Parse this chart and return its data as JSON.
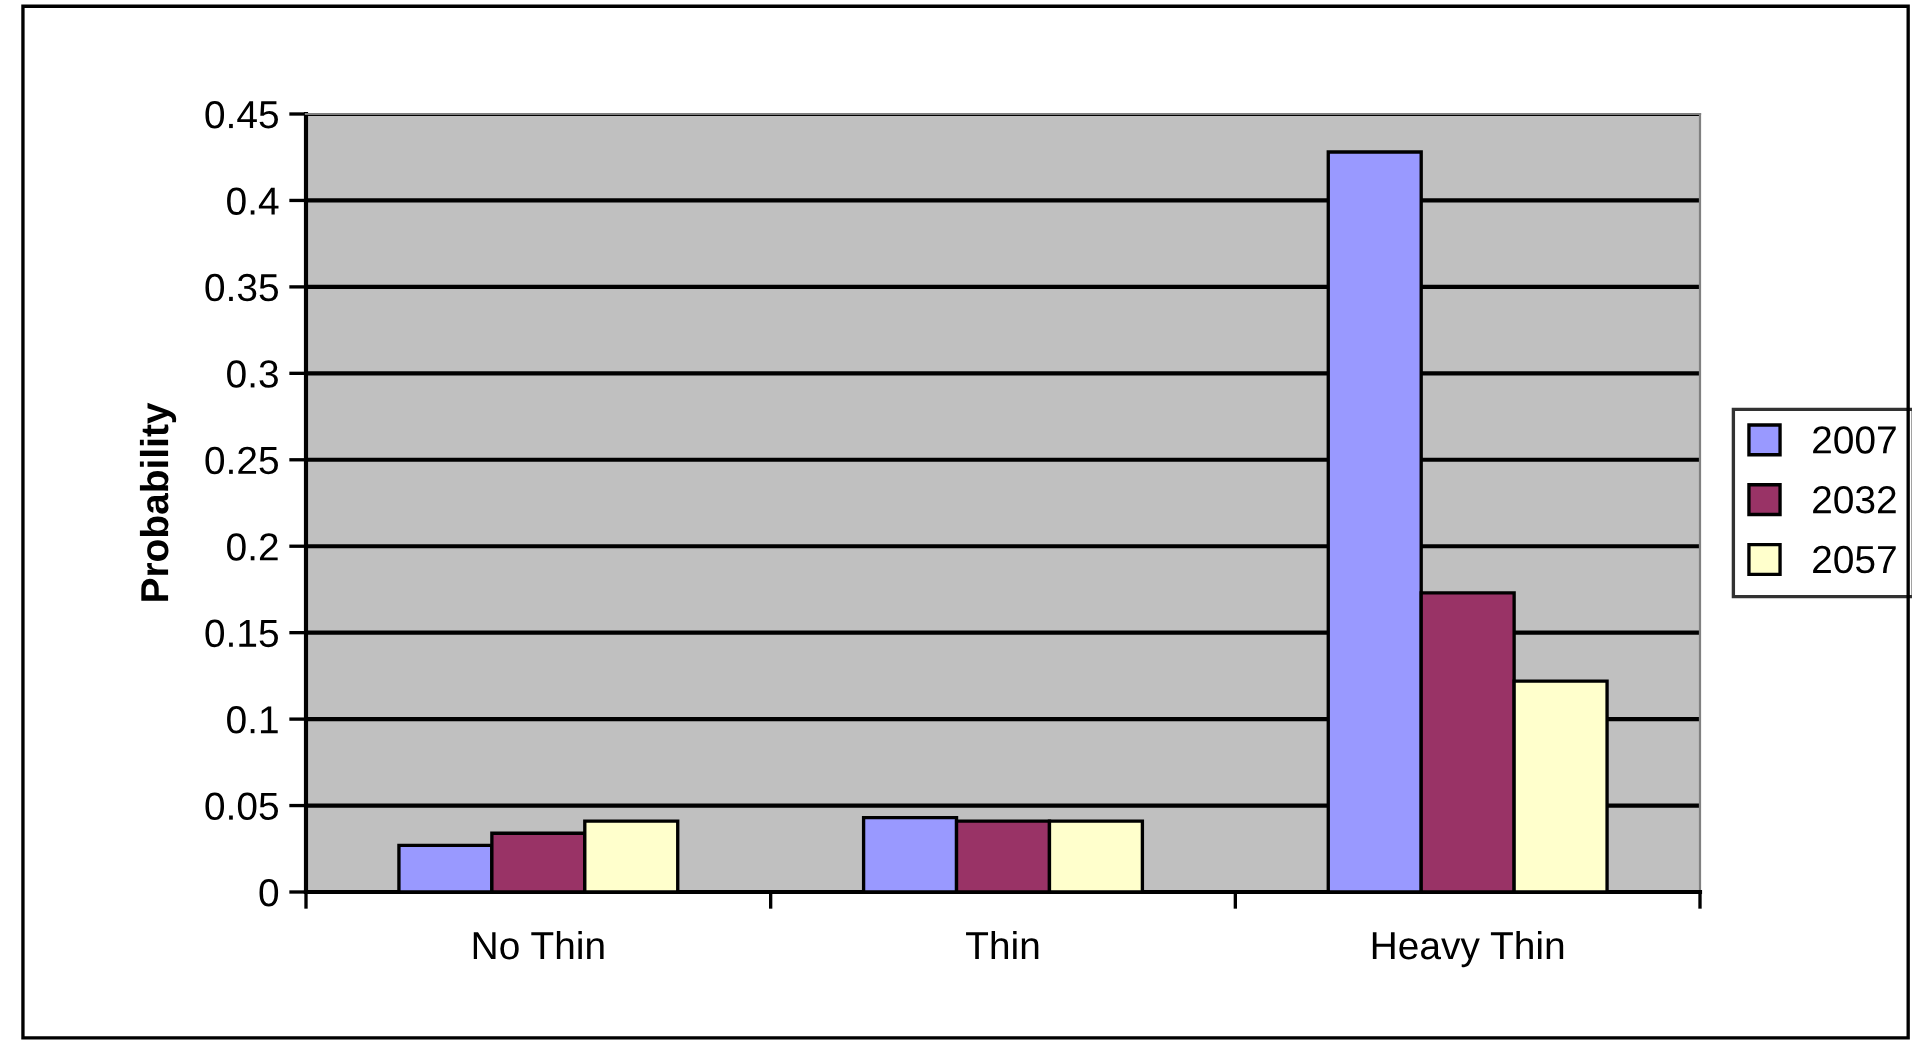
{
  "chart_data": {
    "type": "bar",
    "ylabel": "Probability",
    "categories": [
      "No Thin",
      "Thin",
      "Heavy Thin"
    ],
    "series": [
      {
        "name": "2007",
        "color": "#9999ff",
        "values": [
          0.027,
          0.043,
          0.428
        ]
      },
      {
        "name": "2032",
        "color": "#993366",
        "values": [
          0.034,
          0.041,
          0.173
        ]
      },
      {
        "name": "2057",
        "color": "#ffffcc",
        "values": [
          0.041,
          0.041,
          0.122
        ]
      }
    ],
    "ylim": [
      0,
      0.45
    ],
    "yticks": [
      0,
      0.05,
      0.1,
      0.15,
      0.2,
      0.25,
      0.3,
      0.35,
      0.4,
      0.45
    ],
    "grid": "y",
    "legend": "right"
  }
}
